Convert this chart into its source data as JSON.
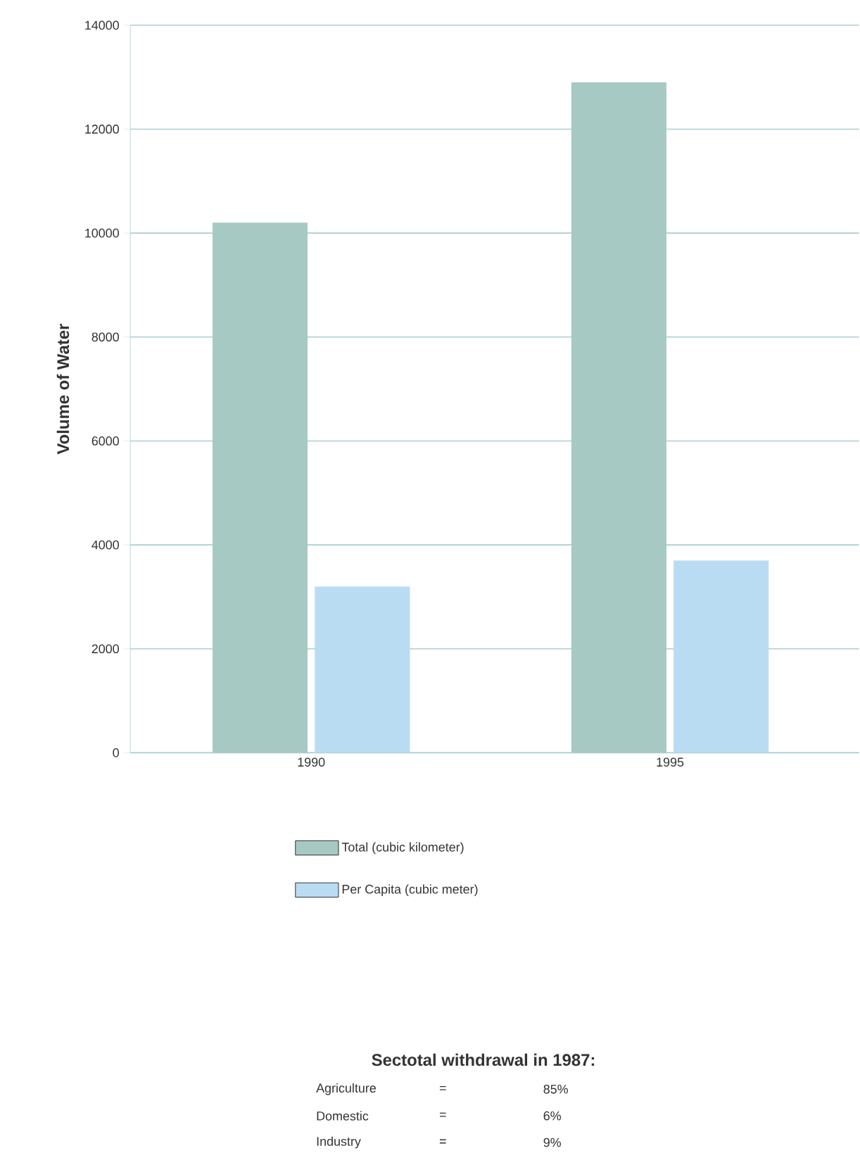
{
  "chart_data": [
    {
      "type": "bar",
      "ylabel": "Volume of Water",
      "categories": [
        "1990",
        "1995"
      ],
      "series": [
        {
          "name": "Total (cubic kilometer)",
          "color": "#a7c9c3",
          "values": [
            10200,
            12900
          ]
        },
        {
          "name": "Per Capita (cubic meter)",
          "color": "#b9dcf3",
          "values": [
            3200,
            3700
          ]
        }
      ],
      "ylim": [
        0,
        14000
      ],
      "yticks": [
        0,
        2000,
        4000,
        6000,
        8000,
        10000,
        12000,
        14000
      ],
      "grid": "y",
      "legend": "bottom"
    },
    {
      "type": "other",
      "title": "Sectotal withdrawal in 1987:",
      "categories": [
        "Agriculture",
        "Domestic",
        "Industry"
      ],
      "value_labels": [
        "85%",
        "6%",
        "9%"
      ],
      "annotations": [
        "=",
        "=",
        "="
      ]
    }
  ]
}
